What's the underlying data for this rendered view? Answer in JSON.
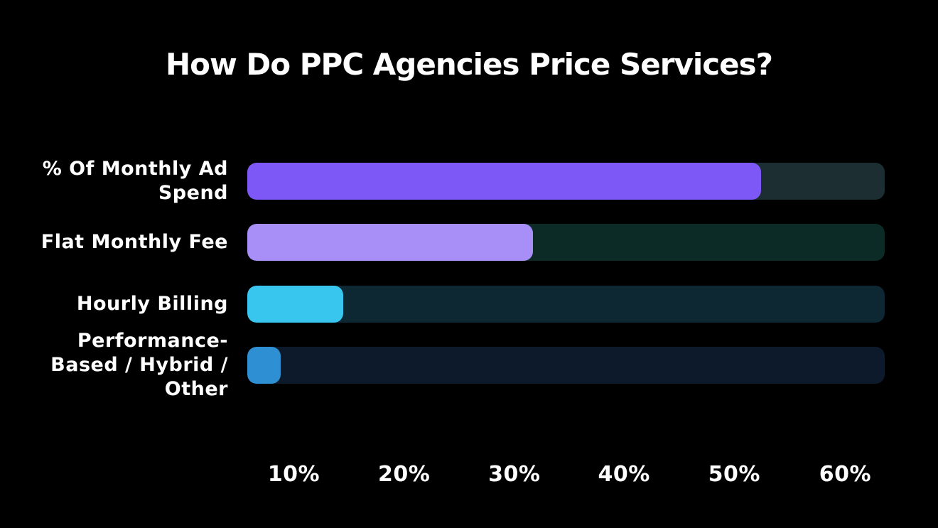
{
  "page": {
    "background": "#000000",
    "text_color": "#ffffff"
  },
  "title": "How Do PPC Agencies Price Services?",
  "chart_data": {
    "type": "bar",
    "orientation": "horizontal",
    "title": "How Do PPC Agencies Price Services?",
    "categories": [
      "% Of Monthly Ad Spend",
      "Flat Monthly Fee",
      "Hourly Billing",
      "Performance-Based / Hybrid / Other"
    ],
    "values": [
      53,
      32,
      15,
      9
    ],
    "unit": "%",
    "xlabel": "",
    "ylabel": "",
    "x_ticks": [
      "10%",
      "20%",
      "30%",
      "40%",
      "50%",
      "60%"
    ],
    "xlim": [
      0,
      64
    ],
    "grid": false,
    "legend": false,
    "bars": [
      {
        "label": "% Of Monthly Ad\nSpend",
        "value_pct": 53,
        "bar_color": "#7e57f7",
        "track_color": "#1c2e31",
        "track_fraction": 0.806
      },
      {
        "label": "Flat Monthly Fee",
        "value_pct": 32,
        "bar_color": "#a78ff7",
        "track_color": "#0c2a26",
        "track_fraction": 0.448
      },
      {
        "label": "Hourly Billing",
        "value_pct": 15,
        "bar_color": "#38c6ef",
        "track_color": "#0d2733",
        "track_fraction": 0.15
      },
      {
        "label": "Performance-\nBased / Hybrid /\nOther",
        "value_pct": 9,
        "bar_color": "#2e8fd2",
        "track_color": "#0c1a2b",
        "track_fraction": 0.052
      }
    ]
  }
}
